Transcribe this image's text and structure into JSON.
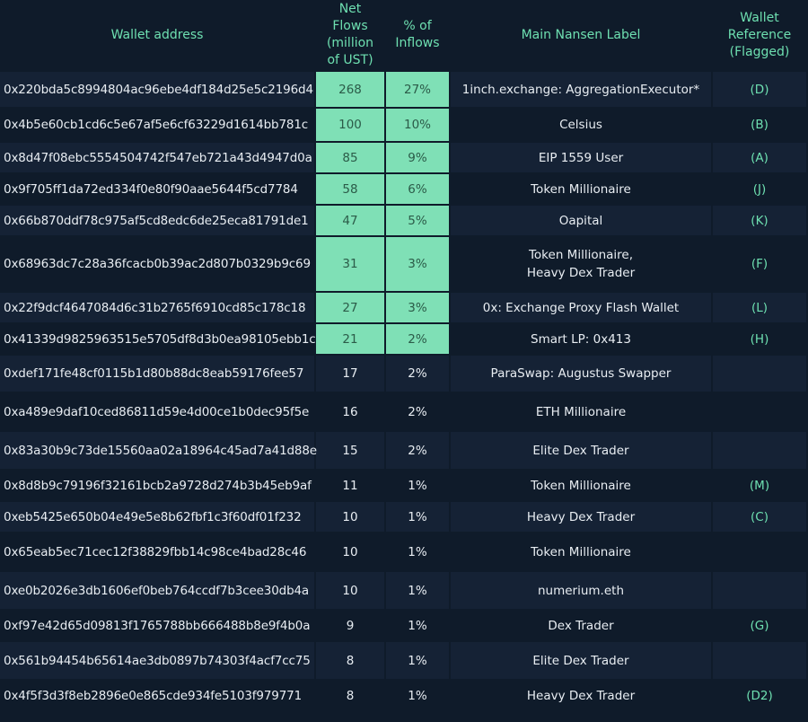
{
  "headers": {
    "wallet": "Wallet address",
    "net_flows": "Net Flows (million of UST)",
    "pct_inflows": "% of Inflows",
    "label": "Main Nansen Label",
    "reference": "Wallet Reference (Flagged)"
  },
  "colors": {
    "background": "#0f1b2a",
    "row_alt": "#152235",
    "accent": "#6ee0b1",
    "highlight": "#7fe0b6"
  },
  "rows": [
    {
      "address": "0x220bda5c8994804ac96ebe4df184d25e5c2196d4",
      "flows": "268",
      "pct": "27%",
      "label": "1inch.exchange: AggregationExecutor*",
      "ref": "(D)",
      "highlight": true
    },
    {
      "address": "0x4b5e60cb1cd6c5e67af5e6cf63229d1614bb781c",
      "flows": "100",
      "pct": "10%",
      "label": "Celsius",
      "ref": "(B)",
      "highlight": true
    },
    {
      "address": "0x8d47f08ebc5554504742f547eb721a43d4947d0a",
      "flows": "85",
      "pct": "9%",
      "label": "EIP 1559 User",
      "ref": "(A)",
      "highlight": true
    },
    {
      "address": "0x9f705ff1da72ed334f0e80f90aae5644f5cd7784",
      "flows": "58",
      "pct": "6%",
      "label": "Token Millionaire",
      "ref": "(J)",
      "highlight": true
    },
    {
      "address": "0x66b870ddf78c975af5cd8edc6de25eca81791de1",
      "flows": "47",
      "pct": "5%",
      "label": "Oapital",
      "ref": "(K)",
      "highlight": true
    },
    {
      "address": "0x68963dc7c28a36fcacb0b39ac2d807b0329b9c69",
      "flows": "31",
      "pct": "3%",
      "label": "Token Millionaire, Heavy Dex Trader",
      "label_line1": "Token Millionaire,",
      "label_line2": "Heavy Dex Trader",
      "ref": "(F)",
      "highlight": true,
      "tall": true
    },
    {
      "address": "0x22f9dcf4647084d6c31b2765f6910cd85c178c18",
      "flows": "27",
      "pct": "3%",
      "label": "0x: Exchange Proxy Flash Wallet",
      "ref": "(L)",
      "highlight": true
    },
    {
      "address": "0x41339d9825963515e5705df8d3b0ea98105ebb1c",
      "flows": "21",
      "pct": "2%",
      "label": "Smart LP: 0x413",
      "ref": "(H)",
      "highlight": true
    },
    {
      "address": "0xdef171fe48cf0115b1d80b88dc8eab59176fee57",
      "flows": "17",
      "pct": "2%",
      "label": "ParaSwap: Augustus Swapper",
      "ref": "",
      "highlight": false
    },
    {
      "address": "0xa489e9daf10ced86811d59e4d00ce1b0dec95f5e",
      "flows": "16",
      "pct": "2%",
      "label": "ETH Millionaire",
      "ref": "",
      "highlight": false
    },
    {
      "address": "0x83a30b9c73de15560aa02a18964c45ad7a41d88e",
      "flows": "15",
      "pct": "2%",
      "label": "Elite Dex Trader",
      "ref": "",
      "highlight": false
    },
    {
      "address": "0x8d8b9c79196f32161bcb2a9728d274b3b45eb9af",
      "flows": "11",
      "pct": "1%",
      "label": "Token Millionaire",
      "ref": "(M)",
      "highlight": false
    },
    {
      "address": "0xeb5425e650b04e49e5e8b62fbf1c3f60df01f232",
      "flows": "10",
      "pct": "1%",
      "label": "Heavy Dex Trader",
      "ref": "(C)",
      "highlight": false
    },
    {
      "address": "0x65eab5ec71cec12f38829fbb14c98ce4bad28c46",
      "flows": "10",
      "pct": "1%",
      "label": "Token Millionaire",
      "ref": "",
      "highlight": false
    },
    {
      "address": "0xe0b2026e3db1606ef0beb764ccdf7b3cee30db4a",
      "flows": "10",
      "pct": "1%",
      "label": "numerium.eth",
      "ref": "",
      "highlight": false
    },
    {
      "address": "0xf97e42d65d09813f1765788bb666488b8e9f4b0a",
      "flows": "9",
      "pct": "1%",
      "label": "Dex Trader",
      "ref": "(G)",
      "highlight": false
    },
    {
      "address": "0x561b94454b65614ae3db0897b74303f4acf7cc75",
      "flows": "8",
      "pct": "1%",
      "label": "Elite Dex Trader",
      "ref": "",
      "highlight": false
    },
    {
      "address": "0x4f5f3d3f8eb2896e0e865cde934fe5103f979771",
      "flows": "8",
      "pct": "1%",
      "label": "Heavy Dex Trader",
      "ref": "(D2)",
      "highlight": false
    }
  ]
}
